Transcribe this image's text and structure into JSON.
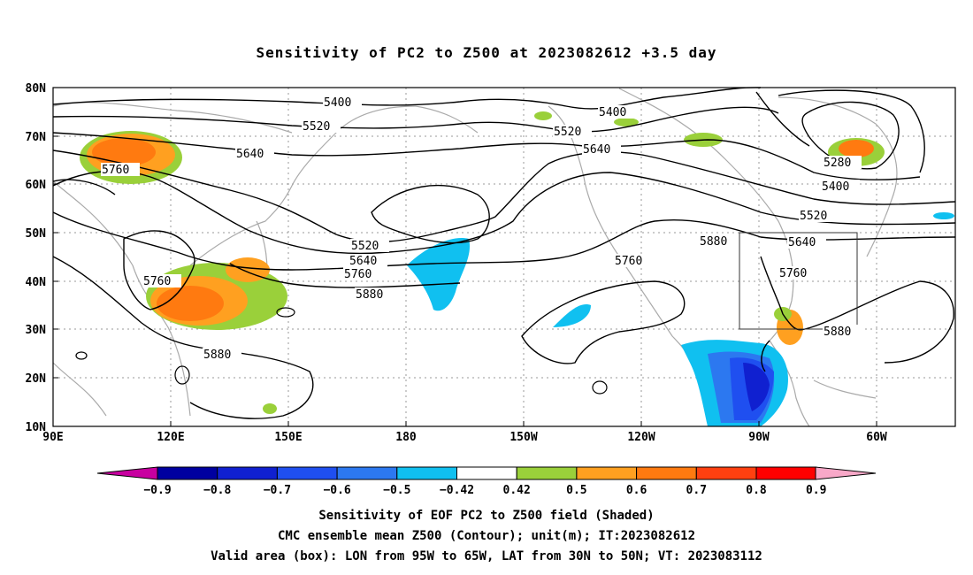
{
  "title": "Sensitivity of PC2 to Z500 at 2023082612 +3.5 day",
  "lat_labels": [
    "80N",
    "70N",
    "60N",
    "50N",
    "40N",
    "30N",
    "20N",
    "10N"
  ],
  "lon_labels": [
    "90E",
    "120E",
    "150E",
    "180",
    "150W",
    "120W",
    "90W",
    "60W"
  ],
  "contour_labels": {
    "c5400a": "5400",
    "c5520a": "5520",
    "c5640a": "5640",
    "c5760a": "5760",
    "c5760b": "5760",
    "c5520b": "5520",
    "c5640b": "5640",
    "c5760c": "5760",
    "c5880a": "5880",
    "c5880b": "5880",
    "c5400b": "5400",
    "c5520c": "5520",
    "c5640c": "5640",
    "c5760d": "5760",
    "c5880c": "5880",
    "c5280": "5280",
    "c5400c": "5400",
    "c5520d": "5520",
    "c5640d": "5640",
    "c5760e": "5760",
    "c5880d": "5880"
  },
  "colorbar": {
    "labels": [
      "-0.9",
      "-0.8",
      "-0.7",
      "-0.6",
      "-0.5",
      "-0.42",
      "0.42",
      "0.5",
      "0.6",
      "0.7",
      "0.8",
      "0.9"
    ],
    "colors": [
      "#0000a0",
      "#1020d0",
      "#1f4ff0",
      "#2c78f0",
      "#10c0f0",
      "#ffffff",
      "#9ad03a",
      "#ffa020",
      "#ff7a10",
      "#ff4010",
      "#ff0000"
    ],
    "low_end_color": "#c800a0",
    "high_end_color": "#f8a8c8"
  },
  "valid_box": {
    "lon_min": -95,
    "lon_max": -65,
    "lat_min": 30,
    "lat_max": 50
  },
  "captions": {
    "line1": "Sensitivity of EOF PC2 to Z500 field (Shaded)",
    "line2": "CMC ensemble mean Z500 (Contour); unit(m); IT:2023082612",
    "line3": "Valid area (box): LON from 95W to 65W, LAT from 30N to 50N; VT: 2023083112"
  }
}
